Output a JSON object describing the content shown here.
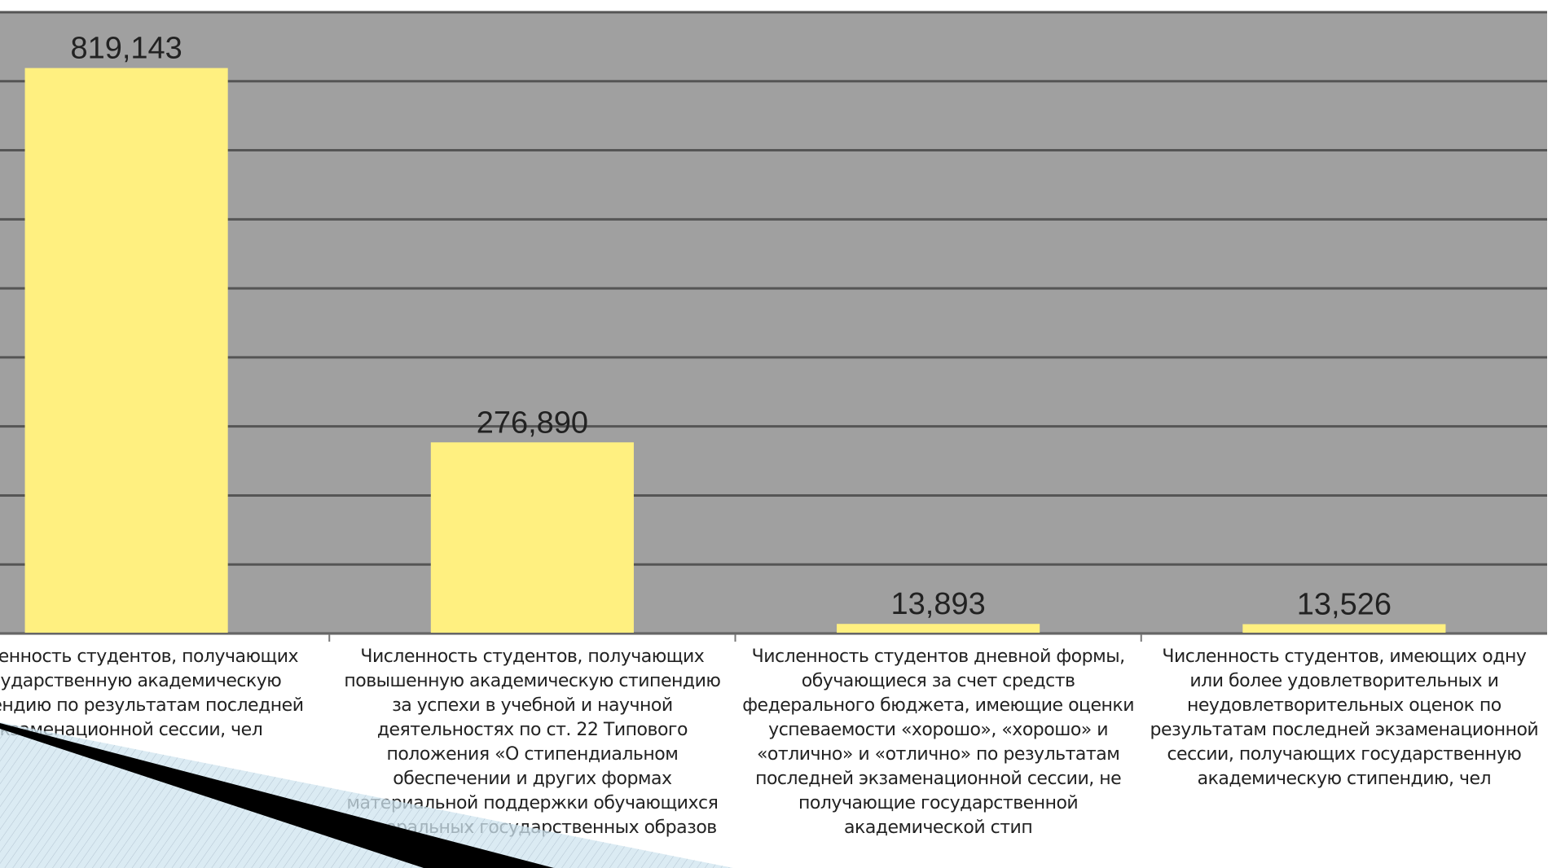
{
  "chart_data": {
    "type": "bar",
    "categories": [
      "Численность студентов, получающих государственную академическую стипендию по результатам последней экзаменационной сессии, чел",
      "Численность студентов, получающих повышенную академическую стипендию за успехи в учебной и научной деятельностях по ст. 22 Типового положения «О стипендиальном обеспечении и других формах материальной поддержки обучающихся федеральных государственных образов",
      "Численность студентов дневной формы, обучающиеся за счет средств федерального бюджета, имеющие оценки успеваемости «хорошо», «хорошо» и «отлично» и «отлично» по результатам последней экзаменационной сессии, не получающие государственной академической стип",
      "Численность студентов, имеющих одну или более удовлетворительных и неудовлетворительных оценок по результатам последней экзаменационной сессии, получающих государственную академическую стипендию, чел"
    ],
    "values": [
      819143,
      276890,
      13893,
      13526
    ],
    "value_labels": [
      "819,143",
      "276,890",
      "13,893",
      "13,526"
    ],
    "color": "#fff080",
    "ylim": [
      0,
      900000
    ],
    "yticks": [
      0,
      100000,
      200000,
      300000,
      400000,
      500000,
      600000,
      700000,
      800000,
      900000
    ],
    "grid": true
  }
}
